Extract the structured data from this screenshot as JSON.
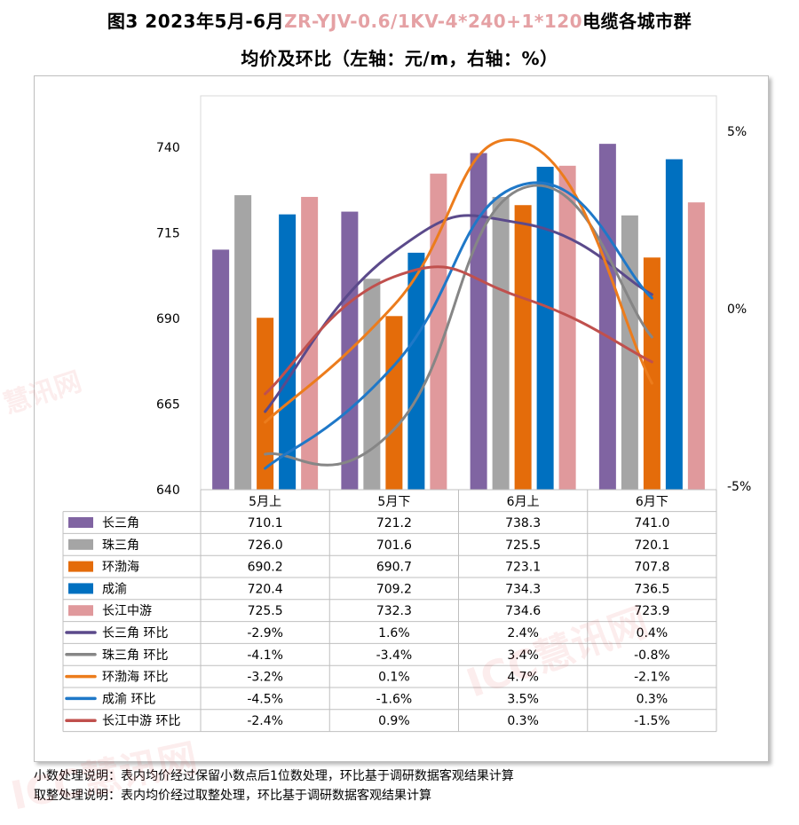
{
  "title": {
    "prefix": "图3 2023年5月-6月",
    "model": "ZR-YJV-0.6/1KV-4*240+1*120",
    "suffix": "电缆各城市群",
    "line2": "均价及环比（左轴：元/m，右轴：%）"
  },
  "notes": [
    "小数处理说明：表内均价经过保留小数点后1位数处理，环比基于调研数据客观结果计算",
    "取整处理说明：表内均价经过取整处理，环比基于调研数据客观结果计算"
  ],
  "watermarks": [
    "慧讯网",
    "ICC慧讯网",
    "ICC慧讯网"
  ],
  "chart_data": {
    "type": "bar",
    "categories": [
      "5月上",
      "5月下",
      "6月上",
      "6月下"
    ],
    "left_axis": {
      "min": 640,
      "max": 740,
      "ticks": [
        640,
        665,
        690,
        715,
        740
      ]
    },
    "right_axis": {
      "min": -5,
      "max": 5,
      "ticks": [
        "-5%",
        "0%",
        "5%"
      ],
      "tick_values": [
        -5,
        0,
        5
      ]
    },
    "grid": false,
    "bar_series": [
      {
        "name": "长三角",
        "color": "#8064a2",
        "values": [
          710.1,
          721.2,
          738.3,
          741.0
        ],
        "labels": [
          "710.1",
          "721.2",
          "738.3",
          "741.0"
        ]
      },
      {
        "name": "珠三角",
        "color": "#a5a5a5",
        "values": [
          726.0,
          701.6,
          725.5,
          720.1
        ],
        "labels": [
          "726.0",
          "701.6",
          "725.5",
          "720.1"
        ]
      },
      {
        "name": "环渤海",
        "color": "#e46c0a",
        "values": [
          690.2,
          690.7,
          723.1,
          707.8
        ],
        "labels": [
          "690.2",
          "690.7",
          "723.1",
          "707.8"
        ]
      },
      {
        "name": "成渝",
        "color": "#0070c0",
        "values": [
          720.4,
          709.2,
          734.3,
          736.5
        ],
        "labels": [
          "720.4",
          "709.2",
          "734.3",
          "736.5"
        ]
      },
      {
        "name": "长江中游",
        "color": "#e0999c",
        "values": [
          725.5,
          732.3,
          734.6,
          723.9
        ],
        "labels": [
          "725.5",
          "732.3",
          "734.6",
          "723.9"
        ]
      }
    ],
    "line_series": [
      {
        "name": "长三角 环比",
        "color": "#5b4a8b",
        "values": [
          -2.9,
          1.6,
          2.4,
          0.4
        ],
        "labels": [
          "-2.9%",
          "1.6%",
          "2.4%",
          "0.4%"
        ]
      },
      {
        "name": "珠三角 环比",
        "color": "#868686",
        "values": [
          -4.1,
          -3.4,
          3.4,
          -0.8
        ],
        "labels": [
          "-4.1%",
          "-3.4%",
          "3.4%",
          "-0.8%"
        ]
      },
      {
        "name": "环渤海 环比",
        "color": "#ec7c1c",
        "values": [
          -3.2,
          0.1,
          4.7,
          -2.1
        ],
        "labels": [
          "-3.2%",
          "0.1%",
          "4.7%",
          "-2.1%"
        ]
      },
      {
        "name": "成渝 环比",
        "color": "#1f78c8",
        "values": [
          -4.5,
          -1.6,
          3.5,
          0.3
        ],
        "labels": [
          "-4.5%",
          "-1.6%",
          "3.5%",
          "0.3%"
        ]
      },
      {
        "name": "长江中游 环比",
        "color": "#c0504d",
        "values": [
          -2.4,
          0.9,
          0.3,
          -1.5
        ],
        "labels": [
          "-2.4%",
          "0.9%",
          "0.3%",
          "-1.5%"
        ]
      }
    ]
  }
}
